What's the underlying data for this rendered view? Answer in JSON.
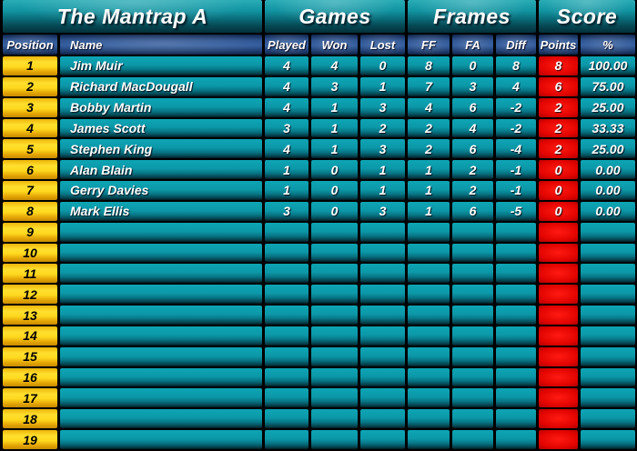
{
  "title_bar": {
    "team": "The Mantrap A",
    "games": "Games",
    "frames": "Frames",
    "score": "Score"
  },
  "columns": {
    "position": "Position",
    "name": "Name",
    "played": "Played",
    "won": "Won",
    "lost": "Lost",
    "ff": "FF",
    "fa": "FA",
    "diff": "Diff",
    "points": "Points",
    "pct": "%"
  },
  "rows": [
    {
      "position": "1",
      "name": "Jim Muir",
      "played": "4",
      "won": "4",
      "lost": "0",
      "ff": "8",
      "fa": "0",
      "diff": "8",
      "points": "8",
      "pct": "100.00"
    },
    {
      "position": "2",
      "name": "Richard MacDougall",
      "played": "4",
      "won": "3",
      "lost": "1",
      "ff": "7",
      "fa": "3",
      "diff": "4",
      "points": "6",
      "pct": "75.00"
    },
    {
      "position": "3",
      "name": "Bobby Martin",
      "played": "4",
      "won": "1",
      "lost": "3",
      "ff": "4",
      "fa": "6",
      "diff": "-2",
      "points": "2",
      "pct": "25.00"
    },
    {
      "position": "4",
      "name": "James Scott",
      "played": "3",
      "won": "1",
      "lost": "2",
      "ff": "2",
      "fa": "4",
      "diff": "-2",
      "points": "2",
      "pct": "33.33"
    },
    {
      "position": "5",
      "name": "Stephen King",
      "played": "4",
      "won": "1",
      "lost": "3",
      "ff": "2",
      "fa": "6",
      "diff": "-4",
      "points": "2",
      "pct": "25.00"
    },
    {
      "position": "6",
      "name": "Alan Blain",
      "played": "1",
      "won": "0",
      "lost": "1",
      "ff": "1",
      "fa": "2",
      "diff": "-1",
      "points": "0",
      "pct": "0.00"
    },
    {
      "position": "7",
      "name": "Gerry Davies",
      "played": "1",
      "won": "0",
      "lost": "1",
      "ff": "1",
      "fa": "2",
      "diff": "-1",
      "points": "0",
      "pct": "0.00"
    },
    {
      "position": "8",
      "name": "Mark Ellis",
      "played": "3",
      "won": "0",
      "lost": "3",
      "ff": "1",
      "fa": "6",
      "diff": "-5",
      "points": "0",
      "pct": "0.00"
    },
    {
      "position": "9",
      "name": "",
      "played": "",
      "won": "",
      "lost": "",
      "ff": "",
      "fa": "",
      "diff": "",
      "points": "",
      "pct": ""
    },
    {
      "position": "10",
      "name": "",
      "played": "",
      "won": "",
      "lost": "",
      "ff": "",
      "fa": "",
      "diff": "",
      "points": "",
      "pct": ""
    },
    {
      "position": "11",
      "name": "",
      "played": "",
      "won": "",
      "lost": "",
      "ff": "",
      "fa": "",
      "diff": "",
      "points": "",
      "pct": ""
    },
    {
      "position": "12",
      "name": "",
      "played": "",
      "won": "",
      "lost": "",
      "ff": "",
      "fa": "",
      "diff": "",
      "points": "",
      "pct": ""
    },
    {
      "position": "13",
      "name": "",
      "played": "",
      "won": "",
      "lost": "",
      "ff": "",
      "fa": "",
      "diff": "",
      "points": "",
      "pct": ""
    },
    {
      "position": "14",
      "name": "",
      "played": "",
      "won": "",
      "lost": "",
      "ff": "",
      "fa": "",
      "diff": "",
      "points": "",
      "pct": ""
    },
    {
      "position": "15",
      "name": "",
      "played": "",
      "won": "",
      "lost": "",
      "ff": "",
      "fa": "",
      "diff": "",
      "points": "",
      "pct": ""
    },
    {
      "position": "16",
      "name": "",
      "played": "",
      "won": "",
      "lost": "",
      "ff": "",
      "fa": "",
      "diff": "",
      "points": "",
      "pct": ""
    },
    {
      "position": "17",
      "name": "",
      "played": "",
      "won": "",
      "lost": "",
      "ff": "",
      "fa": "",
      "diff": "",
      "points": "",
      "pct": ""
    },
    {
      "position": "18",
      "name": "",
      "played": "",
      "won": "",
      "lost": "",
      "ff": "",
      "fa": "",
      "diff": "",
      "points": "",
      "pct": ""
    },
    {
      "position": "19",
      "name": "",
      "played": "",
      "won": "",
      "lost": "",
      "ff": "",
      "fa": "",
      "diff": "",
      "points": "",
      "pct": ""
    }
  ],
  "colors": {
    "teal_cell": "#0C98A8",
    "navy_header": "#2B5291",
    "gold_position": "#FFD91F",
    "red_points": "#E20400",
    "title_teal": "#1295A2"
  }
}
